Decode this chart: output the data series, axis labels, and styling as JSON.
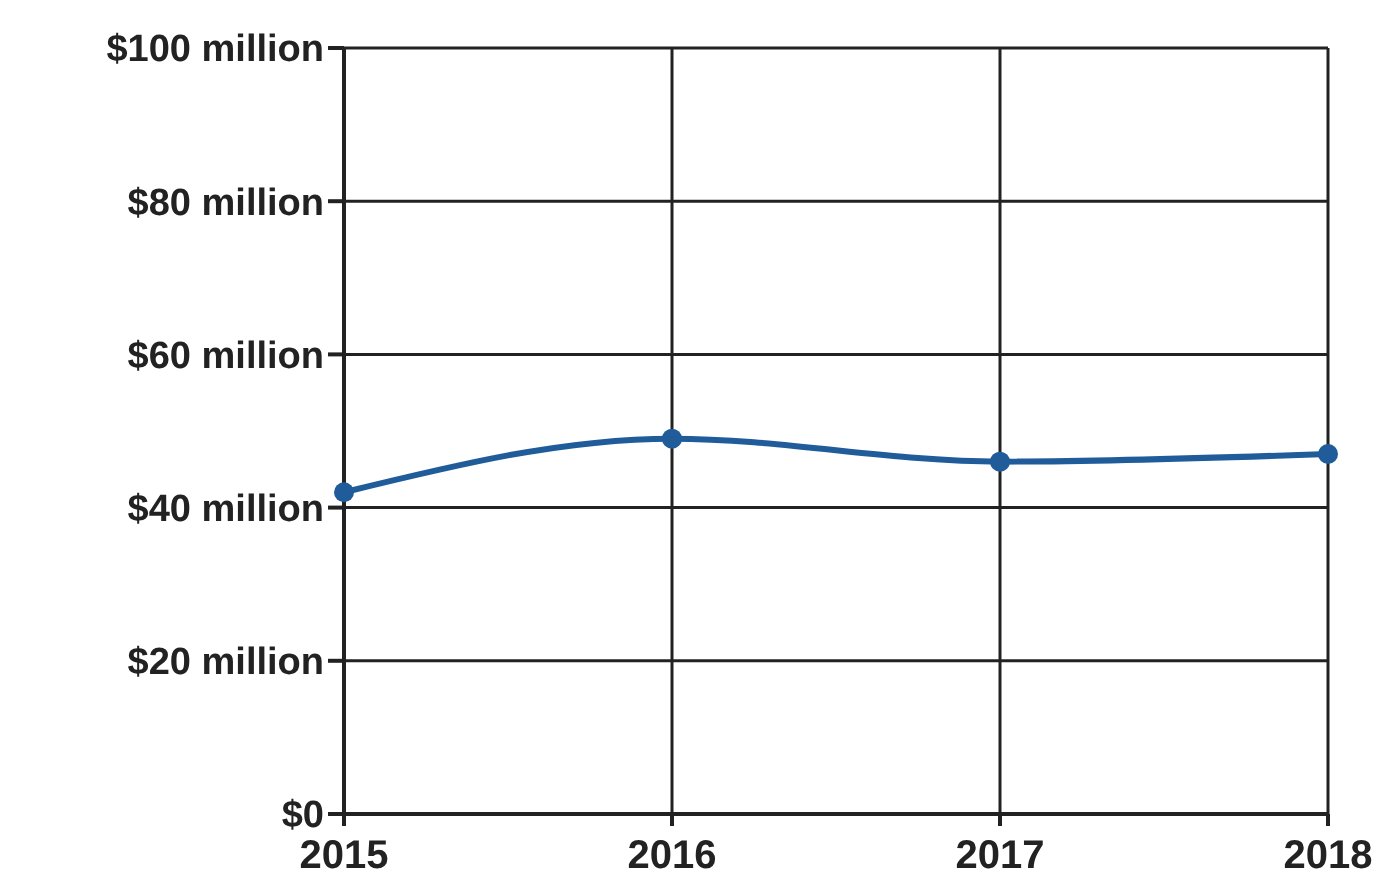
{
  "chart_data": {
    "type": "line",
    "x": [
      2015,
      2016,
      2017,
      2018
    ],
    "series": [
      {
        "color": "#1f5c99",
        "values": [
          42,
          49,
          46,
          47
        ]
      }
    ],
    "xlim": [
      2015,
      2018
    ],
    "xticks": [
      2015,
      2016,
      2017,
      2018
    ],
    "ylim": [
      0,
      100
    ],
    "yticks": [
      {
        "value": 0,
        "label": "$0"
      },
      {
        "value": 20,
        "label": "$20 million"
      },
      {
        "value": 40,
        "label": "$40 million"
      },
      {
        "value": 60,
        "label": "$60 million"
      },
      {
        "value": 80,
        "label": "$80 million"
      },
      {
        "value": 100,
        "label": "$100 million"
      }
    ],
    "grid": true,
    "marker": "circle",
    "line_style": "solid"
  }
}
